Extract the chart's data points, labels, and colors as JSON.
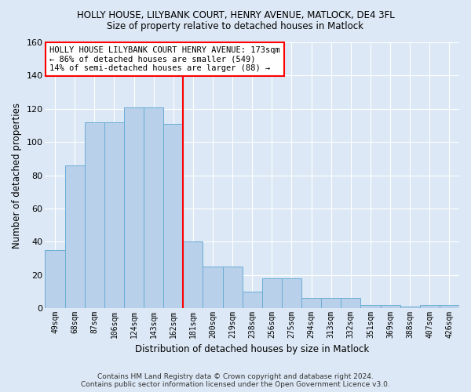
{
  "title": "HOLLY HOUSE, LILYBANK COURT, HENRY AVENUE, MATLOCK, DE4 3FL",
  "subtitle": "Size of property relative to detached houses in Matlock",
  "xlabel": "Distribution of detached houses by size in Matlock",
  "ylabel": "Number of detached properties",
  "categories": [
    "49sqm",
    "68sqm",
    "87sqm",
    "106sqm",
    "124sqm",
    "143sqm",
    "162sqm",
    "181sqm",
    "200sqm",
    "219sqm",
    "238sqm",
    "256sqm",
    "275sqm",
    "294sqm",
    "313sqm",
    "332sqm",
    "351sqm",
    "369sqm",
    "388sqm",
    "407sqm",
    "426sqm"
  ],
  "values": [
    35,
    86,
    112,
    112,
    121,
    121,
    111,
    40,
    25,
    25,
    10,
    18,
    18,
    6,
    6,
    6,
    2,
    2,
    1,
    2,
    2
  ],
  "bar_color": "#b8d0ea",
  "bar_edge_color": "#6aadd5",
  "ylim": [
    0,
    160
  ],
  "yticks": [
    0,
    20,
    40,
    60,
    80,
    100,
    120,
    140,
    160
  ],
  "vline_index": 7,
  "vline_color": "red",
  "annotation_line1": "HOLLY HOUSE LILYBANK COURT HENRY AVENUE: 173sqm",
  "annotation_line2": "← 86% of detached houses are smaller (549)",
  "annotation_line3": "14% of semi-detached houses are larger (88) →",
  "annotation_box_color": "white",
  "annotation_box_edge_color": "red",
  "bg_color": "#dce8f5",
  "plot_bg_color": "#dce8f5",
  "footer_text": "Contains HM Land Registry data © Crown copyright and database right 2024.\nContains public sector information licensed under the Open Government Licence v3.0."
}
